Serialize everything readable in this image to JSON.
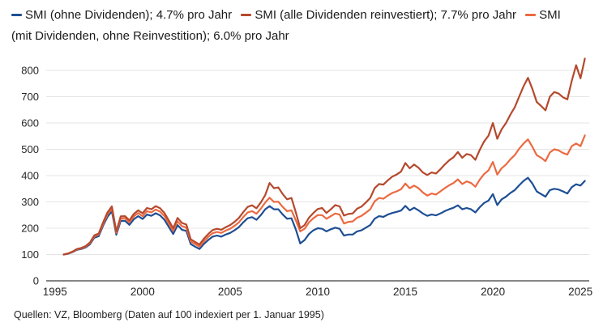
{
  "footer": {
    "source": "Quellen: VZ, Bloomberg (Daten auf 100 indexiert per 1. Januar 1995)"
  },
  "chart_data": {
    "type": "line",
    "title": "",
    "xlabel": "",
    "ylabel": "",
    "x_start": 1995.5,
    "x_step": 0.25,
    "xlim": [
      1994.5,
      2025.5
    ],
    "ylim": [
      0,
      800
    ],
    "x_ticks": [
      1995,
      2000,
      2005,
      2010,
      2015,
      2020,
      2025
    ],
    "y_ticks": [
      0,
      100,
      200,
      300,
      400,
      500,
      600,
      700,
      800
    ],
    "grid": "horizontal",
    "legend_position": "top",
    "index_base": 100,
    "series": [
      {
        "name": "SMI (ohne Dividenden)",
        "annual_return": "4.7% pro Jahr",
        "label": "SMI (ohne Dividenden); 4.7% pro Jahr",
        "color": "#1e4f94",
        "values": [
          100,
          103,
          109,
          118,
          121,
          127,
          139,
          164,
          170,
          210,
          243,
          265,
          175,
          228,
          228,
          213,
          234,
          246,
          235,
          252,
          247,
          257,
          249,
          232,
          205,
          178,
          212,
          194,
          190,
          140,
          130,
          121,
          140,
          155,
          168,
          172,
          168,
          176,
          182,
          192,
          204,
          222,
          238,
          242,
          232,
          250,
          272,
          284,
          272,
          272,
          252,
          236,
          238,
          195,
          142,
          155,
          178,
          192,
          200,
          198,
          188,
          196,
          202,
          198,
          172,
          176,
          176,
          188,
          192,
          202,
          212,
          236,
          246,
          243,
          252,
          258,
          262,
          267,
          285,
          268,
          278,
          268,
          256,
          247,
          252,
          249,
          256,
          265,
          272,
          278,
          287,
          272,
          277,
          272,
          260,
          280,
          296,
          305,
          330,
          288,
          310,
          320,
          334,
          345,
          363,
          380,
          392,
          370,
          340,
          330,
          320,
          345,
          350,
          347,
          340,
          332,
          356,
          367,
          362,
          380
        ]
      },
      {
        "name": "SMI (alle Dividenden reinvestiert)",
        "annual_return": "7.7% pro Jahr",
        "label": "SMI (alle Dividenden reinvestiert); 7.7% pro Jahr",
        "color": "#b5492c",
        "values": [
          100,
          104,
          111,
          121,
          125,
          132,
          146,
          173,
          180,
          222,
          260,
          283,
          188,
          245,
          246,
          230,
          254,
          268,
          257,
          277,
          272,
          284,
          276,
          258,
          229,
          200,
          239,
          220,
          214,
          158,
          148,
          138,
          160,
          178,
          193,
          198,
          194,
          204,
          212,
          224,
          239,
          261,
          281,
          287,
          276,
          298,
          326,
          372,
          352,
          355,
          330,
          310,
          315,
          260,
          200,
          212,
          240,
          258,
          273,
          277,
          258,
          272,
          288,
          283,
          248,
          254,
          256,
          274,
          282,
          298,
          315,
          352,
          368,
          366,
          382,
          396,
          404,
          415,
          448,
          428,
          442,
          430,
          412,
          402,
          412,
          408,
          424,
          442,
          458,
          470,
          490,
          468,
          482,
          478,
          460,
          498,
          530,
          552,
          600,
          540,
          576,
          600,
          632,
          660,
          700,
          740,
          772,
          730,
          680,
          665,
          648,
          700,
          718,
          712,
          698,
          690,
          760,
          820,
          770,
          845
        ]
      },
      {
        "name": "SMI (mit Dividenden, ohne Reinvestition)",
        "annual_return": "6.0% pro Jahr",
        "label": "SMI (mit Dividenden, ohne Reinvestition); 6.0% pro Jahr",
        "color": "#ec6a41",
        "values": [
          100,
          104,
          110,
          120,
          123,
          130,
          143,
          169,
          176,
          216,
          252,
          275,
          182,
          237,
          238,
          222,
          245,
          258,
          246,
          265,
          260,
          271,
          263,
          246,
          218,
          190,
          226,
          208,
          202,
          150,
          140,
          130,
          150,
          167,
          181,
          186,
          182,
          191,
          198,
          209,
          222,
          242,
          260,
          265,
          255,
          274,
          298,
          316,
          300,
          301,
          281,
          265,
          268,
          230,
          188,
          198,
          222,
          238,
          250,
          250,
          236,
          246,
          256,
          252,
          218,
          224,
          226,
          240,
          247,
          259,
          272,
          302,
          315,
          312,
          324,
          334,
          340,
          348,
          370,
          352,
          362,
          352,
          336,
          324,
          332,
          328,
          340,
          352,
          363,
          372,
          386,
          368,
          378,
          372,
          358,
          385,
          406,
          420,
          452,
          404,
          428,
          442,
          462,
          478,
          502,
          522,
          538,
          510,
          478,
          468,
          455,
          488,
          500,
          496,
          486,
          480,
          512,
          522,
          512,
          553
        ]
      }
    ]
  }
}
